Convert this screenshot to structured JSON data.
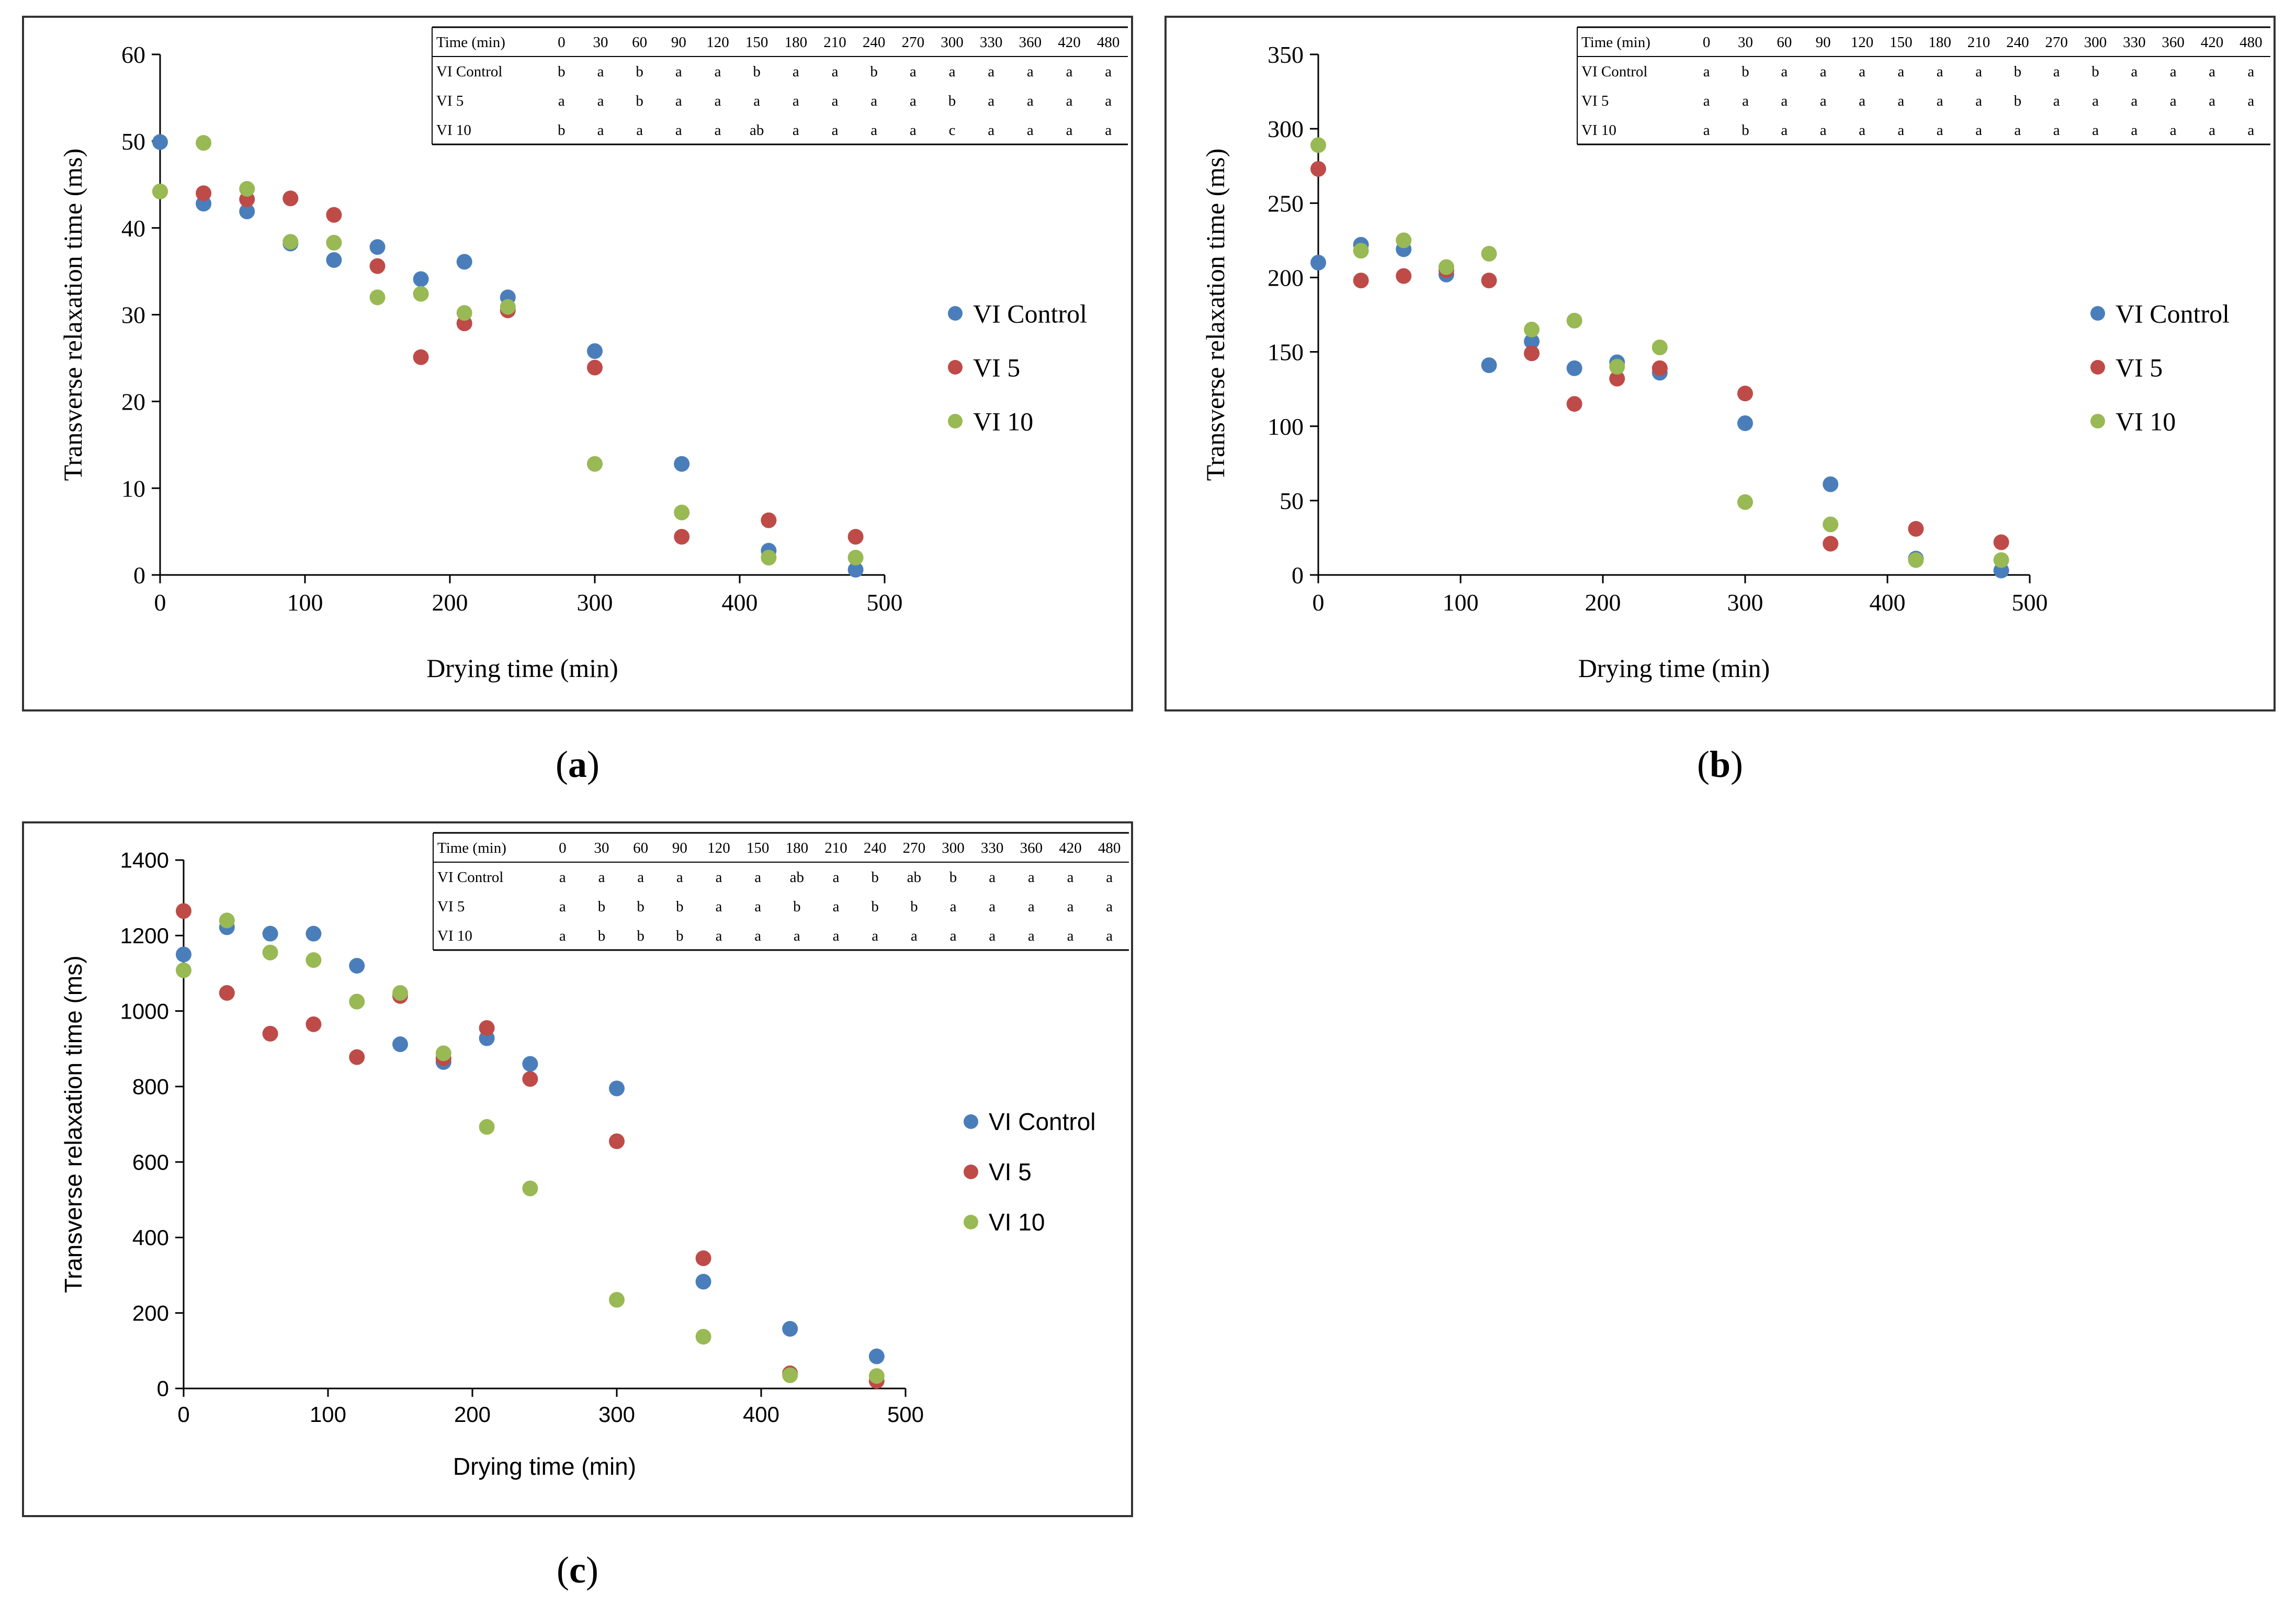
{
  "colors": {
    "VI Control": "#4a7ebb",
    "VI 5": "#be4b48",
    "VI 10": "#98b954",
    "axis": "#000000"
  },
  "chart_data": [
    {
      "id": "a",
      "type": "scatter",
      "panel_label": "a",
      "xlabel": "Drying time (min)",
      "ylabel": "Transverse relaxation time (ms)",
      "xlim": [
        0,
        500
      ],
      "ylim": [
        0,
        60
      ],
      "xticks": [
        0,
        100,
        200,
        300,
        400,
        500
      ],
      "yticks": [
        0,
        10,
        20,
        30,
        40,
        50,
        60
      ],
      "grid": false,
      "legend": "right",
      "x": [
        0,
        30,
        60,
        90,
        120,
        150,
        180,
        210,
        240,
        300,
        360,
        420,
        480
      ],
      "series": [
        {
          "name": "VI Control",
          "values": [
            49.9,
            42.8,
            41.9,
            38.2,
            36.3,
            37.8,
            34.1,
            36.1,
            32.0,
            25.8,
            12.8,
            2.8,
            0.6
          ]
        },
        {
          "name": "VI 5",
          "values": [
            44.2,
            44.0,
            43.3,
            43.4,
            41.5,
            35.6,
            25.1,
            29.0,
            30.5,
            23.9,
            4.4,
            6.3,
            4.4
          ]
        },
        {
          "name": "VI 10",
          "values": [
            44.2,
            49.8,
            44.5,
            38.4,
            38.3,
            32.0,
            32.4,
            30.2,
            30.9,
            12.8,
            7.2,
            2.0,
            2.0
          ]
        }
      ],
      "annotation_table": {
        "header": [
          "Time (min)",
          "0",
          "30",
          "60",
          "90",
          "120",
          "150",
          "180",
          "210",
          "240",
          "270",
          "300",
          "330",
          "360",
          "420",
          "480"
        ],
        "rows": [
          [
            "VI Control",
            "b",
            "a",
            "b",
            "a",
            "a",
            "b",
            "a",
            "a",
            "b",
            "a",
            "a",
            "a",
            "a",
            "a",
            "a"
          ],
          [
            "VI 5",
            "a",
            "a",
            "b",
            "a",
            "a",
            "a",
            "a",
            "a",
            "a",
            "a",
            "b",
            "a",
            "a",
            "a",
            "a"
          ],
          [
            "VI 10",
            "b",
            "a",
            "a",
            "a",
            "a",
            "ab",
            "a",
            "a",
            "a",
            "a",
            "c",
            "a",
            "a",
            "a",
            "a"
          ]
        ]
      }
    },
    {
      "id": "b",
      "type": "scatter",
      "panel_label": "b",
      "xlabel": "Drying time (min)",
      "ylabel": "Transverse relaxation time (ms)",
      "xlim": [
        0,
        500
      ],
      "ylim": [
        0,
        350
      ],
      "xticks": [
        0,
        100,
        200,
        300,
        400,
        500
      ],
      "yticks": [
        0,
        50,
        100,
        150,
        200,
        250,
        300,
        350
      ],
      "grid": false,
      "legend": "right",
      "x": [
        0,
        30,
        60,
        90,
        120,
        150,
        180,
        210,
        240,
        300,
        360,
        420,
        480
      ],
      "series": [
        {
          "name": "VI Control",
          "values": [
            210,
            222,
            219,
            202,
            141,
            157,
            139,
            143,
            136,
            102,
            61,
            11,
            3
          ]
        },
        {
          "name": "VI 5",
          "values": [
            273,
            198,
            201,
            205,
            198,
            149,
            115,
            132,
            139,
            122,
            21,
            31,
            22
          ]
        },
        {
          "name": "VI 10",
          "values": [
            289,
            218,
            225,
            207,
            216,
            165,
            171,
            140,
            153,
            49,
            34,
            10,
            10
          ]
        }
      ],
      "annotation_table": {
        "header": [
          "Time (min)",
          "0",
          "30",
          "60",
          "90",
          "120",
          "150",
          "180",
          "210",
          "240",
          "270",
          "300",
          "330",
          "360",
          "420",
          "480"
        ],
        "rows": [
          [
            "VI Control",
            "a",
            "b",
            "a",
            "a",
            "a",
            "a",
            "a",
            "a",
            "b",
            "a",
            "b",
            "a",
            "a",
            "a",
            "a"
          ],
          [
            "VI 5",
            "a",
            "a",
            "a",
            "a",
            "a",
            "a",
            "a",
            "a",
            "b",
            "a",
            "a",
            "a",
            "a",
            "a",
            "a"
          ],
          [
            "VI 10",
            "a",
            "b",
            "a",
            "a",
            "a",
            "a",
            "a",
            "a",
            "a",
            "a",
            "a",
            "a",
            "a",
            "a",
            "a"
          ]
        ]
      }
    },
    {
      "id": "c",
      "type": "scatter",
      "panel_label": "c",
      "xlabel": "Drying time (min)",
      "ylabel": "Transverse relaxation time (ms)",
      "xlim": [
        0,
        500
      ],
      "ylim": [
        0,
        1400
      ],
      "xticks": [
        0,
        100,
        200,
        300,
        400,
        500
      ],
      "yticks": [
        0,
        200,
        400,
        600,
        800,
        1000,
        1200,
        1400
      ],
      "grid": false,
      "legend": "right",
      "x": [
        0,
        30,
        60,
        90,
        120,
        150,
        180,
        210,
        240,
        300,
        360,
        420,
        480
      ],
      "series": [
        {
          "name": "VI Control",
          "values": [
            1150,
            1222,
            1205,
            1205,
            1120,
            912,
            865,
            928,
            860,
            795,
            283,
            158,
            85
          ]
        },
        {
          "name": "VI 5",
          "values": [
            1265,
            1048,
            940,
            965,
            878,
            1040,
            875,
            955,
            820,
            655,
            345,
            40,
            20
          ]
        },
        {
          "name": "VI 10",
          "values": [
            1108,
            1240,
            1155,
            1135,
            1025,
            1048,
            888,
            693,
            530,
            235,
            137,
            35,
            33
          ]
        }
      ],
      "annotation_table": {
        "header": [
          "Time (min)",
          "0",
          "30",
          "60",
          "90",
          "120",
          "150",
          "180",
          "210",
          "240",
          "270",
          "300",
          "330",
          "360",
          "420",
          "480"
        ],
        "rows": [
          [
            "VI Control",
            "a",
            "a",
            "a",
            "a",
            "a",
            "a",
            "ab",
            "a",
            "b",
            "ab",
            "b",
            "a",
            "a",
            "a",
            "a"
          ],
          [
            "VI 5",
            "a",
            "b",
            "b",
            "b",
            "a",
            "a",
            "b",
            "a",
            "b",
            "b",
            "a",
            "a",
            "a",
            "a",
            "a"
          ],
          [
            "VI 10",
            "a",
            "b",
            "b",
            "b",
            "a",
            "a",
            "a",
            "a",
            "a",
            "a",
            "a",
            "a",
            "a",
            "a",
            "a"
          ]
        ]
      }
    }
  ]
}
